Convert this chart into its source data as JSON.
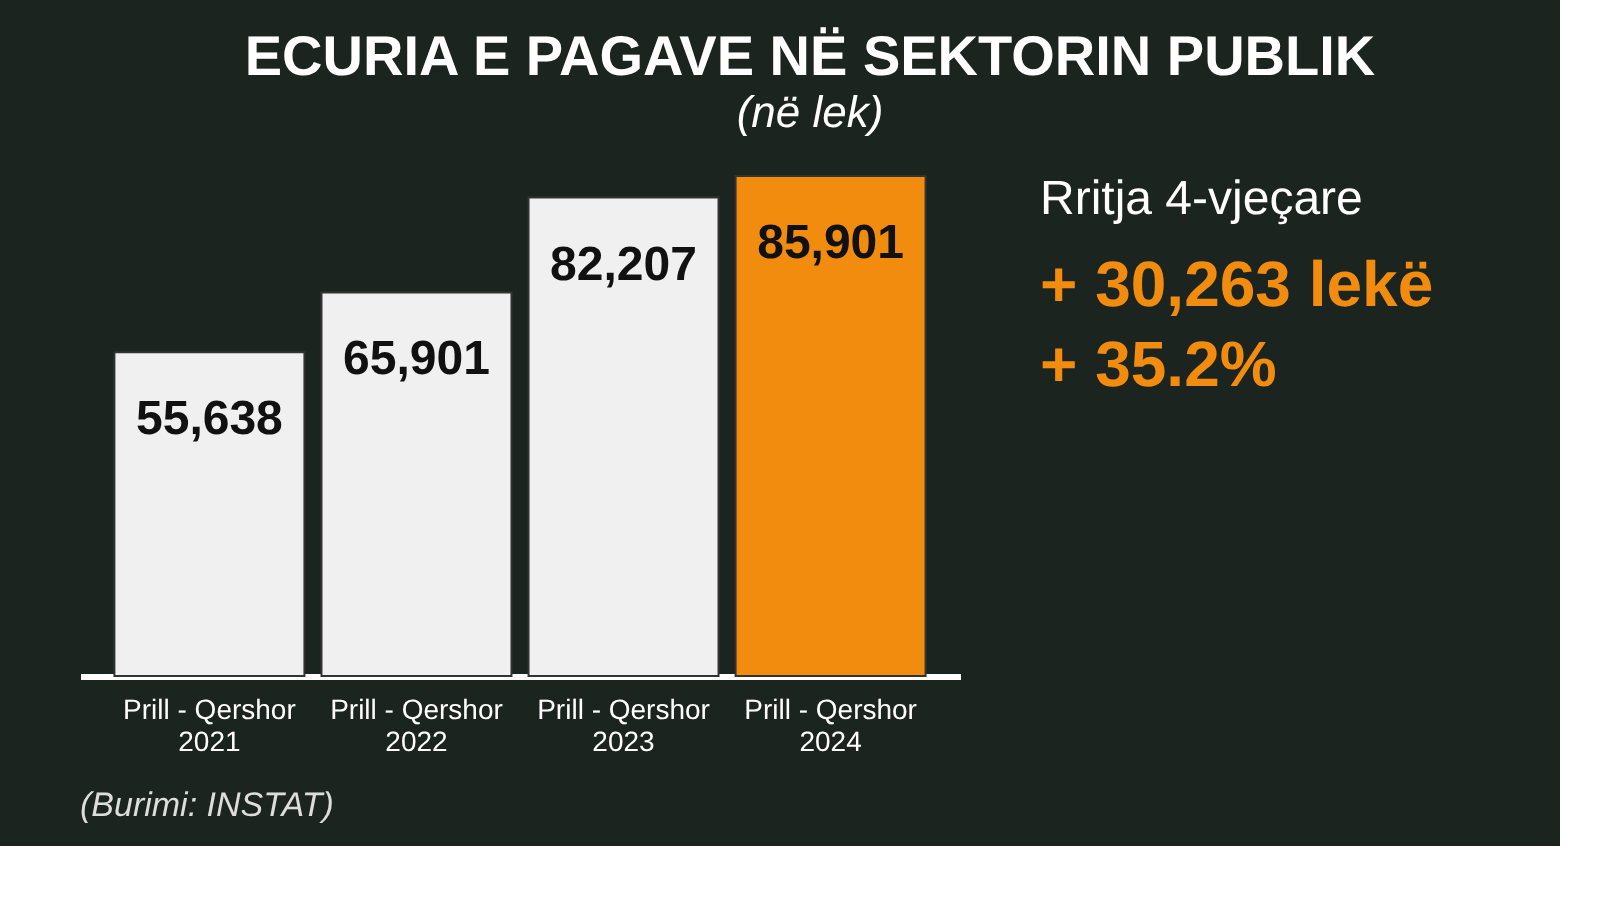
{
  "chart_data": {
    "type": "bar",
    "title": "ECURIA E PAGAVE NË SEKTORIN PUBLIK",
    "subtitle": "(në lek)",
    "categories": [
      "Prill - Qershor\n2021",
      "Prill - Qershor\n2022",
      "Prill - Qershor\n2023",
      "Prill - Qershor\n2024"
    ],
    "values": [
      55638,
      65901,
      82207,
      85901
    ],
    "colors": [
      "#f0f0f0",
      "#f0f0f0",
      "#f0f0f0",
      "#f28c0f"
    ],
    "value_labels": [
      "55,638",
      "65,901",
      "82,207",
      "85,901"
    ],
    "grid": false,
    "tick_labels": "x",
    "annotations": [
      "Rritja 4-vjeçare",
      "+ 30,263 lekë",
      "+ 35.2%",
      "(Burimi: INSTAT)"
    ]
  }
}
